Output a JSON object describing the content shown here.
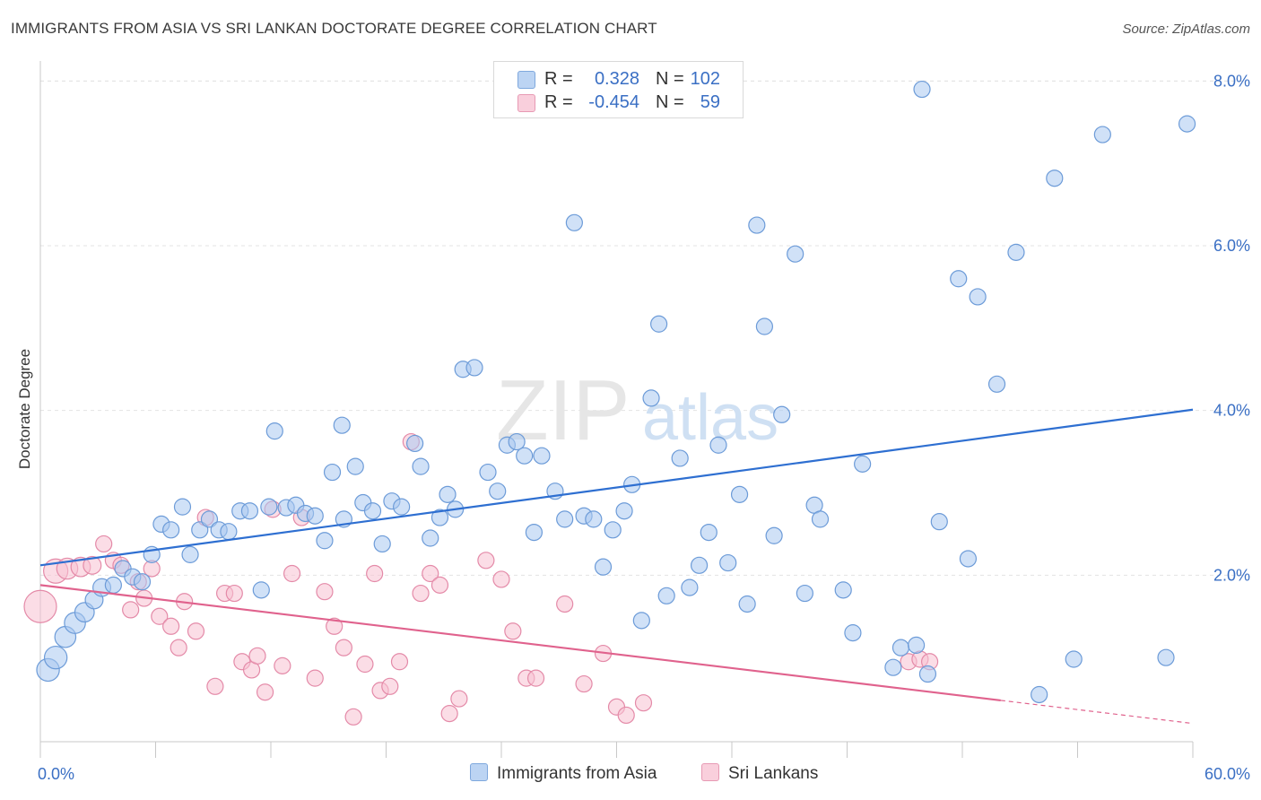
{
  "header": {
    "title": "IMMIGRANTS FROM ASIA VS SRI LANKAN DOCTORATE DEGREE CORRELATION CHART",
    "source": "Source: ZipAtlas.com"
  },
  "legend": {
    "rows": [
      {
        "r_label": "R =",
        "r_value": "0.328",
        "n_label": "N =",
        "n_value": "102"
      },
      {
        "r_label": "R =",
        "r_value": "-0.454",
        "n_label": "N =",
        "n_value": "59"
      }
    ]
  },
  "watermark": {
    "zip": "ZIP",
    "atlas": "atlas"
  },
  "colors": {
    "asia_fill": "#a9c8f0",
    "asia_stroke": "#6c9bd8",
    "asia_line": "#2e6fd1",
    "srilanka_fill": "#f7c1d2",
    "srilanka_stroke": "#e48aa8",
    "srilanka_line": "#e0628d",
    "tick_label": "#3a6fc4",
    "grid": "#e3e3e3"
  },
  "chart_data": {
    "type": "scatter",
    "ylabel": "Doctorate Degree",
    "xlim": [
      0,
      60
    ],
    "ylim": [
      0,
      8.2
    ],
    "x_tick_labels": [
      {
        "value": 0,
        "label": "0.0%"
      },
      {
        "value": 60,
        "label": "60.0%"
      }
    ],
    "y_ticks": [
      {
        "value": 2,
        "label": "2.0%"
      },
      {
        "value": 4,
        "label": "4.0%"
      },
      {
        "value": 6,
        "label": "6.0%"
      },
      {
        "value": 8,
        "label": "8.0%"
      }
    ],
    "grid": true,
    "legend_position": "bottom",
    "series": [
      {
        "name": "Immigrants from Asia",
        "trend": {
          "x0": 0,
          "y0": 2.12,
          "x1": 60,
          "y1": 4.01
        },
        "points": [
          [
            0.4,
            0.85,
            1.4
          ],
          [
            0.8,
            1.0,
            1.4
          ],
          [
            1.3,
            1.25,
            1.3
          ],
          [
            1.8,
            1.42,
            1.3
          ],
          [
            2.3,
            1.55,
            1.2
          ],
          [
            2.8,
            1.7,
            1.1
          ],
          [
            3.2,
            1.85,
            1.1
          ],
          [
            3.8,
            1.88,
            1.0
          ],
          [
            4.3,
            2.08,
            1.0
          ],
          [
            4.8,
            1.98,
            1.0
          ],
          [
            5.3,
            1.92,
            1.0
          ],
          [
            5.8,
            2.25,
            1.0
          ],
          [
            6.3,
            2.62,
            1.0
          ],
          [
            6.8,
            2.55,
            1.0
          ],
          [
            7.4,
            2.83,
            1.0
          ],
          [
            7.8,
            2.25,
            1.0
          ],
          [
            8.3,
            2.55,
            1.0
          ],
          [
            8.8,
            2.68,
            1.0
          ],
          [
            9.3,
            2.55,
            1.0
          ],
          [
            9.8,
            2.53,
            1.0
          ],
          [
            10.4,
            2.78,
            1.0
          ],
          [
            10.9,
            2.78,
            1.0
          ],
          [
            11.5,
            1.82,
            1.0
          ],
          [
            11.9,
            2.83,
            1.0
          ],
          [
            12.2,
            3.75,
            1.0
          ],
          [
            12.8,
            2.82,
            1.0
          ],
          [
            13.3,
            2.85,
            1.0
          ],
          [
            13.8,
            2.75,
            1.0
          ],
          [
            14.3,
            2.72,
            1.0
          ],
          [
            14.8,
            2.42,
            1.0
          ],
          [
            15.2,
            3.25,
            1.0
          ],
          [
            15.7,
            3.82,
            1.0
          ],
          [
            15.8,
            2.68,
            1.0
          ],
          [
            16.4,
            3.32,
            1.0
          ],
          [
            16.8,
            2.88,
            1.0
          ],
          [
            17.3,
            2.78,
            1.0
          ],
          [
            17.8,
            2.38,
            1.0
          ],
          [
            18.3,
            2.9,
            1.0
          ],
          [
            18.8,
            2.83,
            1.0
          ],
          [
            19.5,
            3.6,
            1.0
          ],
          [
            19.8,
            3.32,
            1.0
          ],
          [
            20.3,
            2.45,
            1.0
          ],
          [
            20.8,
            2.7,
            1.0
          ],
          [
            21.2,
            2.98,
            1.0
          ],
          [
            21.6,
            2.8,
            1.0
          ],
          [
            22.0,
            4.5,
            1.0
          ],
          [
            22.6,
            4.52,
            1.0
          ],
          [
            23.3,
            3.25,
            1.0
          ],
          [
            23.8,
            3.02,
            1.0
          ],
          [
            24.3,
            3.58,
            1.0
          ],
          [
            24.8,
            3.62,
            1.0
          ],
          [
            25.2,
            3.45,
            1.0
          ],
          [
            25.7,
            2.52,
            1.0
          ],
          [
            26.1,
            3.45,
            1.0
          ],
          [
            26.8,
            3.02,
            1.0
          ],
          [
            27.3,
            2.68,
            1.0
          ],
          [
            27.8,
            6.28,
            1.0
          ],
          [
            28.3,
            2.72,
            1.0
          ],
          [
            28.8,
            2.68,
            1.0
          ],
          [
            29.3,
            2.1,
            1.0
          ],
          [
            29.8,
            2.55,
            1.0
          ],
          [
            30.4,
            2.78,
            1.0
          ],
          [
            30.8,
            3.1,
            1.0
          ],
          [
            31.3,
            1.45,
            1.0
          ],
          [
            31.8,
            4.15,
            1.0
          ],
          [
            32.2,
            5.05,
            1.0
          ],
          [
            32.6,
            1.75,
            1.0
          ],
          [
            33.3,
            3.42,
            1.0
          ],
          [
            33.8,
            1.85,
            1.0
          ],
          [
            34.3,
            2.12,
            1.0
          ],
          [
            34.8,
            2.52,
            1.0
          ],
          [
            35.3,
            3.58,
            1.0
          ],
          [
            35.8,
            2.15,
            1.0
          ],
          [
            36.4,
            2.98,
            1.0
          ],
          [
            36.8,
            1.65,
            1.0
          ],
          [
            37.3,
            6.25,
            1.0
          ],
          [
            37.7,
            5.02,
            1.0
          ],
          [
            38.2,
            2.48,
            1.0
          ],
          [
            38.6,
            3.95,
            1.0
          ],
          [
            39.3,
            5.9,
            1.0
          ],
          [
            39.8,
            1.78,
            1.0
          ],
          [
            40.3,
            2.85,
            1.0
          ],
          [
            40.6,
            2.68,
            1.0
          ],
          [
            41.8,
            1.82,
            1.0
          ],
          [
            42.3,
            1.3,
            1.0
          ],
          [
            42.8,
            3.35,
            1.0
          ],
          [
            44.4,
            0.88,
            1.0
          ],
          [
            44.8,
            1.12,
            1.0
          ],
          [
            45.6,
            1.15,
            1.0
          ],
          [
            45.9,
            7.9,
            1.0
          ],
          [
            46.2,
            0.8,
            1.0
          ],
          [
            46.8,
            2.65,
            1.0
          ],
          [
            47.8,
            5.6,
            1.0
          ],
          [
            48.3,
            2.2,
            1.0
          ],
          [
            48.8,
            5.38,
            1.0
          ],
          [
            49.8,
            4.32,
            1.0
          ],
          [
            50.8,
            5.92,
            1.0
          ],
          [
            52.0,
            0.55,
            1.0
          ],
          [
            52.8,
            6.82,
            1.0
          ],
          [
            53.8,
            0.98,
            1.0
          ],
          [
            55.3,
            7.35,
            1.0
          ],
          [
            58.6,
            1.0,
            1.0
          ],
          [
            59.7,
            7.48,
            1.0
          ]
        ]
      },
      {
        "name": "Sri Lankans",
        "trend": {
          "x0": 0,
          "y0": 1.88,
          "x1": 50,
          "y1": 0.48,
          "dash_to_x": 60,
          "dash_to_y": 0.2
        },
        "points": [
          [
            0.0,
            1.62,
            2.0
          ],
          [
            0.8,
            2.05,
            1.5
          ],
          [
            1.4,
            2.08,
            1.3
          ],
          [
            2.1,
            2.1,
            1.2
          ],
          [
            2.7,
            2.12,
            1.1
          ],
          [
            3.3,
            2.38,
            1.0
          ],
          [
            3.8,
            2.18,
            1.0
          ],
          [
            4.2,
            2.12,
            1.0
          ],
          [
            4.7,
            1.58,
            1.0
          ],
          [
            5.1,
            1.92,
            1.0
          ],
          [
            5.4,
            1.72,
            1.0
          ],
          [
            5.8,
            2.08,
            1.0
          ],
          [
            6.2,
            1.5,
            1.0
          ],
          [
            6.8,
            1.38,
            1.0
          ],
          [
            7.2,
            1.12,
            1.0
          ],
          [
            7.5,
            1.68,
            1.0
          ],
          [
            8.1,
            1.32,
            1.0
          ],
          [
            8.6,
            2.7,
            1.0
          ],
          [
            9.1,
            0.65,
            1.0
          ],
          [
            9.6,
            1.78,
            1.0
          ],
          [
            10.1,
            1.78,
            1.0
          ],
          [
            10.5,
            0.95,
            1.0
          ],
          [
            11.0,
            0.85,
            1.0
          ],
          [
            11.3,
            1.02,
            1.0
          ],
          [
            11.7,
            0.58,
            1.0
          ],
          [
            12.1,
            2.8,
            1.0
          ],
          [
            12.6,
            0.9,
            1.0
          ],
          [
            13.1,
            2.02,
            1.0
          ],
          [
            13.6,
            2.7,
            1.0
          ],
          [
            14.3,
            0.75,
            1.0
          ],
          [
            14.8,
            1.8,
            1.0
          ],
          [
            15.3,
            1.38,
            1.0
          ],
          [
            15.8,
            1.12,
            1.0
          ],
          [
            16.3,
            0.28,
            1.0
          ],
          [
            16.9,
            0.92,
            1.0
          ],
          [
            17.4,
            2.02,
            1.0
          ],
          [
            17.7,
            0.6,
            1.0
          ],
          [
            18.2,
            0.65,
            1.0
          ],
          [
            18.7,
            0.95,
            1.0
          ],
          [
            19.3,
            3.62,
            1.0
          ],
          [
            19.8,
            1.78,
            1.0
          ],
          [
            20.3,
            2.02,
            1.0
          ],
          [
            20.8,
            1.88,
            1.0
          ],
          [
            21.3,
            0.32,
            1.0
          ],
          [
            21.8,
            0.5,
            1.0
          ],
          [
            23.2,
            2.18,
            1.0
          ],
          [
            24.0,
            1.95,
            1.0
          ],
          [
            24.6,
            1.32,
            1.0
          ],
          [
            25.3,
            0.75,
            1.0
          ],
          [
            25.8,
            0.75,
            1.0
          ],
          [
            27.3,
            1.65,
            1.0
          ],
          [
            28.3,
            0.68,
            1.0
          ],
          [
            29.3,
            1.05,
            1.0
          ],
          [
            30.0,
            0.4,
            1.0
          ],
          [
            30.5,
            0.3,
            1.0
          ],
          [
            31.4,
            0.45,
            1.0
          ],
          [
            45.2,
            0.95,
            1.0
          ],
          [
            45.8,
            0.98,
            1.0
          ],
          [
            46.3,
            0.95,
            1.0
          ]
        ]
      }
    ]
  },
  "bottom_legend": {
    "items": [
      {
        "label": "Immigrants from Asia"
      },
      {
        "label": "Sri Lankans"
      }
    ]
  }
}
